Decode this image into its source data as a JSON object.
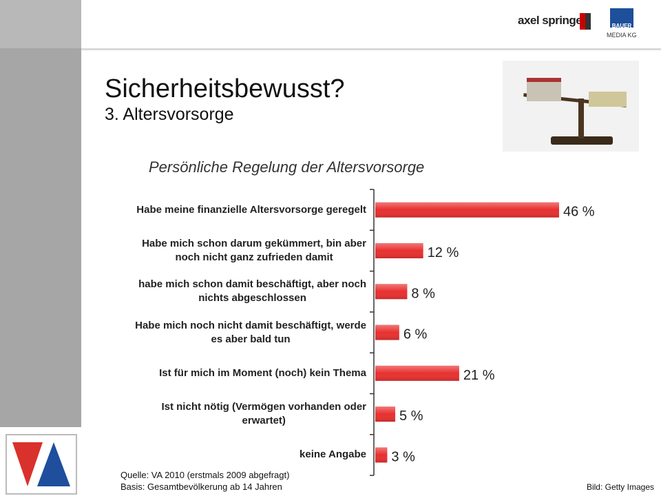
{
  "slide": {
    "title": "Sicherheitsbewusst?",
    "subtitle": "3. Altersvorsorge",
    "brand_left": "axel springer",
    "brand_right": [
      "BAUER",
      "MEDIA KG"
    ],
    "source": [
      "Quelle: VA 2010 (erstmals 2009 abgefragt)",
      "Basis: Gesamtbevölkerung ab 14 Jahren"
    ],
    "image_credit": "Bild: Getty Images"
  },
  "chart_data": {
    "type": "bar",
    "orientation": "horizontal",
    "title": "Persönliche Regelung der Altersvorsorge",
    "categories": [
      "Habe meine finanzielle Altersvorsorge geregelt",
      "Habe mich schon darum gekümmert, bin aber\nnoch nicht ganz zufrieden damit",
      "habe mich schon damit beschäftigt, aber noch\nnichts abgeschlossen",
      "Habe mich noch nicht damit beschäftigt, werde\nes aber bald tun",
      "Ist für mich im Moment (noch) kein Thema",
      "Ist nicht nötig (Vermögen vorhanden oder\nerwartet)",
      "keine Angabe"
    ],
    "values": [
      46,
      12,
      8,
      6,
      21,
      5,
      3
    ],
    "value_labels": [
      "46 %",
      "12 %",
      "8 %",
      "6 %",
      "21 %",
      "5 %",
      "3 %"
    ],
    "color": "#e8302f"
  }
}
